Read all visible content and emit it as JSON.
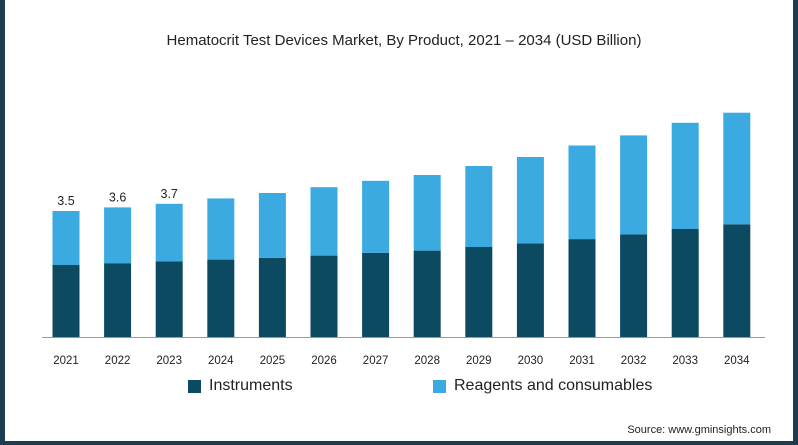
{
  "chart_data": {
    "type": "bar",
    "stacked": true,
    "title": "Hematocrit Test Devices Market, By Product, 2021 – 2034 (USD Billion)",
    "xlabel": "",
    "ylabel": "",
    "categories": [
      "2021",
      "2022",
      "2023",
      "2024",
      "2025",
      "2026",
      "2027",
      "2028",
      "2029",
      "2030",
      "2031",
      "2032",
      "2033",
      "2034"
    ],
    "series": [
      {
        "name": "Instruments",
        "color": "#0b4a60",
        "values": [
          2.0,
          2.05,
          2.1,
          2.15,
          2.2,
          2.26,
          2.34,
          2.4,
          2.5,
          2.6,
          2.72,
          2.85,
          3.0,
          3.13
        ]
      },
      {
        "name": "Reagents and consumables",
        "color": "#3aaae1",
        "values": [
          1.5,
          1.55,
          1.6,
          1.7,
          1.8,
          1.9,
          2.0,
          2.1,
          2.25,
          2.4,
          2.6,
          2.75,
          2.95,
          3.1
        ]
      }
    ],
    "data_labels": [
      "3.5",
      "3.6",
      "3.7",
      "",
      "",
      "",
      "",
      "",
      "",
      "",
      "",
      "",
      "",
      ""
    ],
    "ylim": [
      0,
      7.0
    ],
    "grid": false,
    "legend_position": "bottom"
  },
  "source_text": "Source: www.gminsights.com"
}
